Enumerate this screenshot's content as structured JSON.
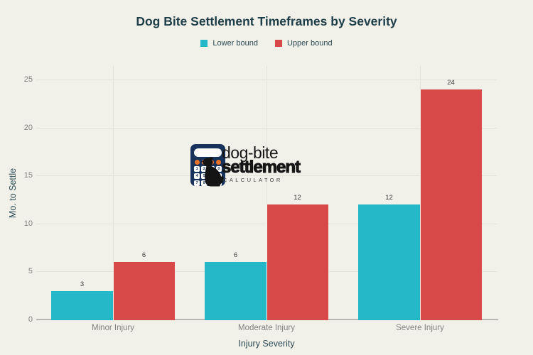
{
  "title": "Dog Bite Settlement Timeframes by Severity",
  "legend": [
    {
      "label": "Lower bound",
      "color": "#24b8c9"
    },
    {
      "label": "Upper bound",
      "color": "#d84a4a"
    }
  ],
  "watermark": {
    "line1": "dog-bite",
    "line2": "settlement",
    "line3": "CALCULATOR",
    "calculator_keys": [
      "1",
      "2",
      "3",
      "0",
      "4",
      "5",
      "6",
      "",
      "7",
      "8",
      "9",
      ""
    ]
  },
  "chart_data": {
    "type": "bar",
    "categories": [
      "Minor Injury",
      "Moderate Injury",
      "Severe Injury"
    ],
    "series": [
      {
        "name": "Lower bound",
        "color": "#24b8c9",
        "values": [
          3,
          6,
          12
        ]
      },
      {
        "name": "Upper bound",
        "color": "#d84a4a",
        "values": [
          6,
          12,
          24
        ]
      }
    ],
    "title": "Dog Bite Settlement Timeframes by Severity",
    "xlabel": "Injury Severity",
    "ylabel": "Mo. to Settle",
    "yticks": [
      0,
      5,
      10,
      15,
      20,
      25
    ],
    "ylim": [
      0,
      26.4
    ],
    "grid": true,
    "legend_position": "top-center",
    "bar_value_labels": [
      3,
      6,
      6,
      12,
      12,
      24
    ],
    "background_color": "#f1f0e9",
    "gridline_color": "#e3e2d9",
    "axis_line_color": "#b6b6b0",
    "title_color": "#1d3e49",
    "tick_label_color": "#828282"
  }
}
